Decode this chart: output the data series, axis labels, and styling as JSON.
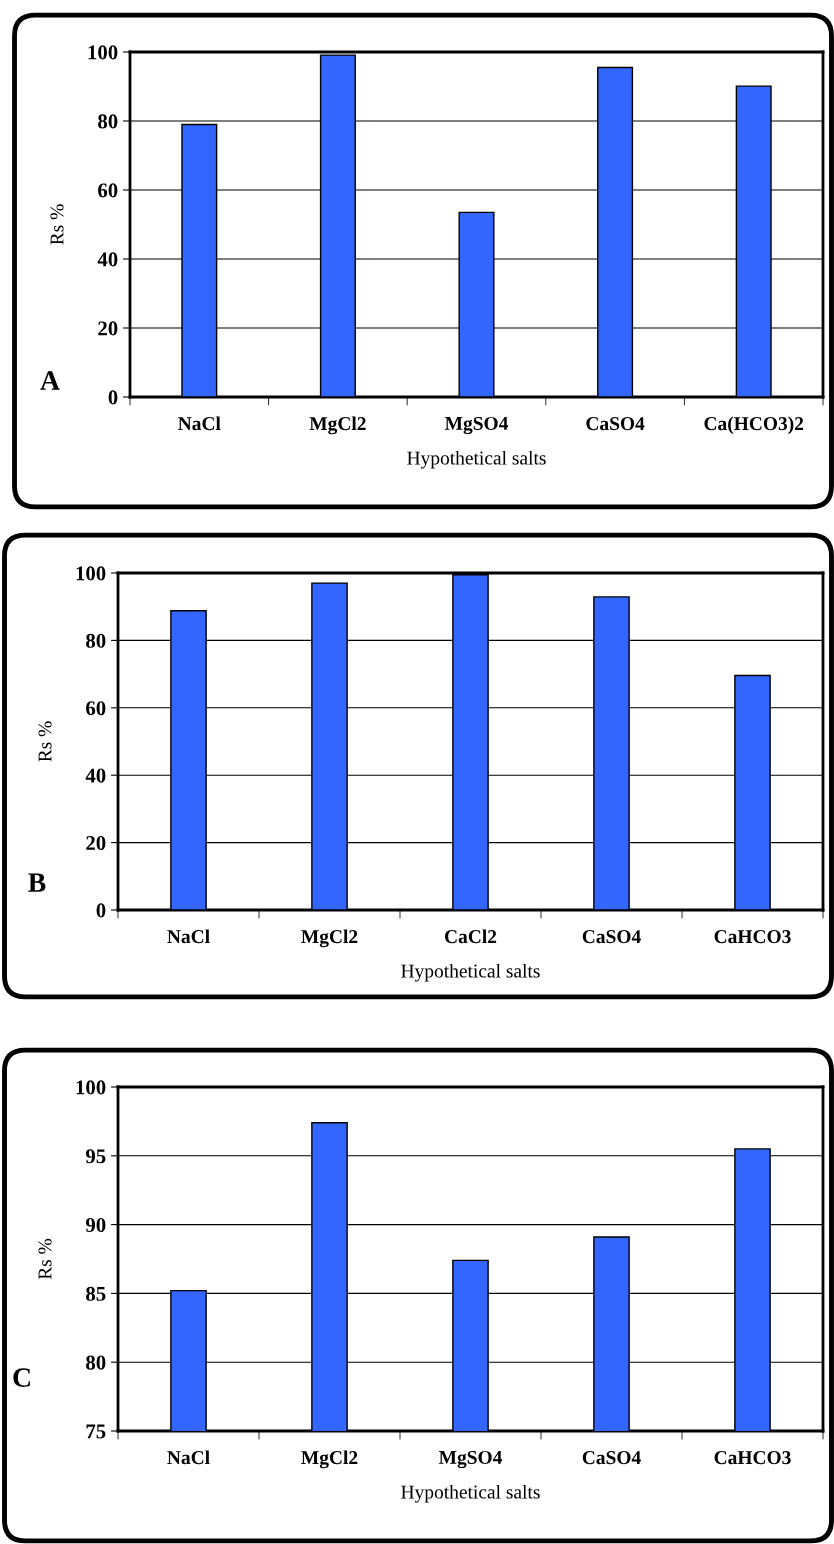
{
  "chart_data": [
    {
      "type": "bar",
      "xlabel": "Hypothetical salts",
      "ylabel": "Rs %",
      "annotations": [
        "A"
      ],
      "categories": [
        "NaCl",
        "MgCl2",
        "MgSO4",
        "CaSO4",
        "Ca(HCO3)2"
      ],
      "values": [
        79.0,
        99.1,
        53.5,
        95.5,
        90.1
      ],
      "color": "#3366ff",
      "ylim": [
        0,
        100
      ],
      "yticks": [
        0,
        20,
        40,
        60,
        80,
        100
      ],
      "grid": "y",
      "legend": false
    },
    {
      "type": "bar",
      "xlabel": "Hypothetical salts",
      "ylabel": "Rs %",
      "annotations": [
        "B"
      ],
      "categories": [
        "NaCl",
        "MgCl2",
        "CaCl2",
        "CaSO4",
        "CaHCO3"
      ],
      "values": [
        88.8,
        97.0,
        99.5,
        92.9,
        69.6
      ],
      "color": "#3366ff",
      "ylim": [
        0,
        100
      ],
      "yticks": [
        0,
        20,
        40,
        60,
        80,
        100
      ],
      "grid": "y",
      "legend": false
    },
    {
      "type": "bar",
      "xlabel": "Hypothetical salts",
      "ylabel": "Rs %",
      "annotations": [
        "C"
      ],
      "categories": [
        "NaCl",
        "MgCl2",
        "MgSO4",
        "CaSO4",
        "CaHCO3"
      ],
      "values": [
        85.2,
        97.4,
        87.4,
        89.1,
        95.5
      ],
      "color": "#3366ff",
      "ylim": [
        75,
        100
      ],
      "yticks": [
        75,
        80,
        85,
        90,
        95,
        100
      ],
      "grid": "y",
      "legend": false
    }
  ]
}
